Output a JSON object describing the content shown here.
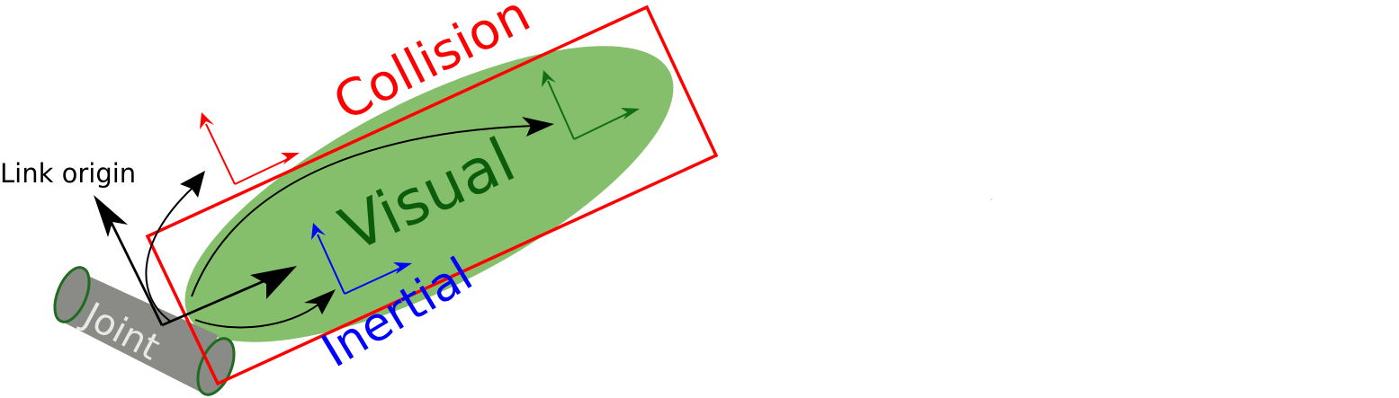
{
  "labels": {
    "link_origin": "Link origin",
    "collision": "Collision",
    "visual": "Visual",
    "inertial": "Inertial",
    "joint": "Joint"
  },
  "colors": {
    "collision": "#ff0000",
    "visual_fill": "#86bf6c",
    "visual_text": "#0b5d0b",
    "visual_frame": "#126e12",
    "inertial": "#0000ff",
    "joint_fill": "#8a8a87",
    "joint_edge": "#1f6b1f",
    "joint_text": "#e8e8e8",
    "arrow": "#000000"
  }
}
